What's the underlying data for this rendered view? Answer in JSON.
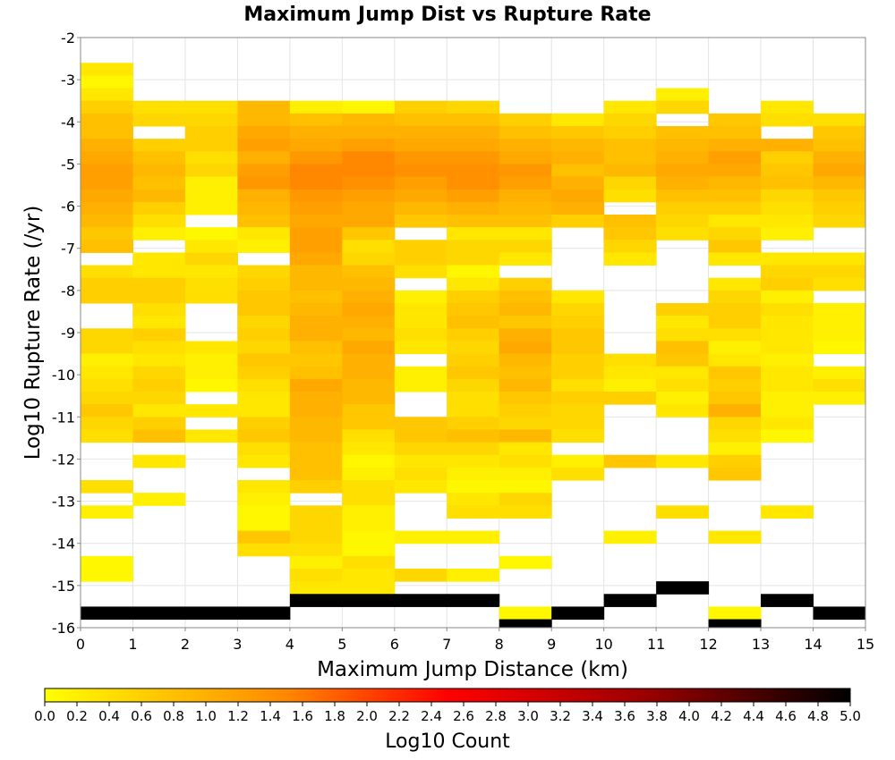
{
  "chart_data": {
    "type": "heatmap",
    "title": "Maximum Jump Dist vs Rupture Rate",
    "xlabel": "Maximum Jump Distance (km)",
    "ylabel": "Log10 Rupture Rate (/yr)",
    "xlim": [
      0,
      15
    ],
    "ylim": [
      -16,
      -2
    ],
    "x_ticks": [
      "0",
      "1",
      "2",
      "3",
      "4",
      "5",
      "6",
      "7",
      "8",
      "9",
      "10",
      "11",
      "12",
      "13",
      "14",
      "15"
    ],
    "y_ticks": [
      "-2",
      "-3",
      "-4",
      "-5",
      "-6",
      "-7",
      "-8",
      "-9",
      "-10",
      "-11",
      "-12",
      "-13",
      "-14",
      "-15",
      "-16"
    ],
    "grid": true,
    "x_bin_width": 1,
    "y_bin_height": 0.3,
    "columns": [
      {
        "x": 0,
        "y_start": -2.6,
        "counts": [
          0.3,
          0.1,
          0.3,
          0.6,
          0.8,
          0.8,
          1.0,
          1.1,
          1.2,
          1.2,
          1.1,
          1.0,
          0.9,
          0.7,
          0.8,
          null,
          0.4,
          0.6,
          0.6,
          null,
          null,
          0.5,
          0.5,
          0.2,
          0.3,
          0.4,
          0.5,
          0.7,
          0.5,
          0.4,
          null,
          null,
          null,
          0.4,
          null,
          0.2,
          null,
          null,
          null,
          0.1,
          0.1,
          null,
          null,
          5.0
        ]
      },
      {
        "x": 1,
        "y_start": -3.5,
        "counts": [
          0.4,
          0.5,
          null,
          0.6,
          0.8,
          0.9,
          0.8,
          0.9,
          0.6,
          0.4,
          0.2,
          null,
          0.3,
          0.3,
          0.6,
          0.6,
          0.4,
          0.3,
          0.6,
          0.4,
          0.3,
          0.5,
          0.6,
          0.5,
          0.3,
          0.6,
          0.8,
          null,
          0.3,
          null,
          null,
          0.2,
          null,
          null,
          null,
          null,
          null,
          null,
          null,
          null,
          5.0
        ]
      },
      {
        "x": 2,
        "y_start": -3.5,
        "counts": [
          0.4,
          0.5,
          0.6,
          0.6,
          0.4,
          0.5,
          0.2,
          0.2,
          0.2,
          null,
          0.1,
          0.3,
          0.5,
          0.3,
          0.4,
          0.4,
          null,
          null,
          null,
          0.3,
          0.2,
          0.2,
          0.1,
          null,
          0.3,
          null,
          0.3,
          null,
          null,
          null,
          null,
          null,
          null,
          null,
          null,
          null,
          null,
          null,
          null,
          null,
          5.0
        ]
      },
      {
        "x": 3,
        "y_start": -3.5,
        "counts": [
          0.9,
          0.9,
          1.1,
          1.2,
          1.0,
          1.2,
          1.3,
          1.0,
          0.9,
          0.8,
          0.3,
          0.2,
          null,
          0.5,
          0.6,
          0.7,
          0.7,
          0.5,
          0.6,
          0.5,
          0.7,
          0.6,
          0.4,
          0.3,
          0.3,
          0.6,
          0.7,
          0.4,
          0.3,
          null,
          0.3,
          0.2,
          0.1,
          0.1,
          0.7,
          0.4,
          null,
          null,
          null,
          null,
          5.1
        ]
      },
      {
        "x": 4,
        "y_start": -3.5,
        "counts": [
          0.2,
          0.8,
          1.0,
          1.1,
          1.3,
          1.5,
          1.5,
          1.3,
          1.2,
          1.1,
          1.2,
          1.2,
          1.1,
          0.9,
          0.9,
          0.8,
          0.9,
          1.0,
          1.0,
          0.8,
          0.7,
          0.8,
          1.1,
          1.0,
          1.0,
          0.9,
          0.9,
          0.8,
          0.8,
          0.8,
          0.6,
          null,
          0.5,
          0.5,
          0.5,
          0.4,
          0.2,
          0.4,
          0.3,
          5.2
        ]
      },
      {
        "x": 5,
        "y_start": -3.5,
        "counts": [
          0.1,
          0.9,
          1.0,
          1.2,
          1.5,
          1.5,
          1.4,
          1.2,
          1.1,
          1.1,
          0.7,
          0.4,
          0.5,
          0.8,
          0.9,
          1.0,
          1.1,
          1.0,
          0.9,
          1.1,
          1.0,
          1.0,
          0.9,
          0.9,
          0.7,
          0.7,
          0.4,
          0.3,
          0.1,
          0.2,
          0.4,
          0.4,
          0.2,
          0.2,
          0.1,
          0.1,
          0.4,
          0.3,
          0.3,
          5.4
        ]
      },
      {
        "x": 6,
        "y_start": -3.5,
        "counts": [
          0.6,
          0.8,
          1.0,
          1.1,
          1.3,
          1.4,
          1.2,
          1.1,
          0.9,
          0.7,
          null,
          0.6,
          0.6,
          0.4,
          null,
          0.2,
          0.3,
          0.3,
          0.4,
          0.3,
          null,
          0.2,
          0.2,
          null,
          null,
          0.7,
          0.7,
          0.5,
          0.3,
          0.4,
          0.3,
          null,
          null,
          null,
          0.2,
          null,
          null,
          0.5,
          null,
          5.1
        ]
      },
      {
        "x": 7,
        "y_start": -3.5,
        "counts": [
          0.5,
          0.8,
          1.0,
          1.1,
          1.3,
          1.4,
          1.4,
          1.2,
          1.0,
          0.8,
          0.3,
          0.5,
          0.5,
          0.1,
          0.3,
          0.6,
          0.7,
          0.8,
          0.6,
          0.5,
          0.6,
          0.7,
          0.5,
          0.4,
          0.4,
          0.6,
          0.8,
          0.5,
          0.3,
          0.2,
          0.1,
          0.3,
          0.4,
          null,
          0.2,
          null,
          null,
          0.2,
          null,
          5.1
        ]
      },
      {
        "x": 8,
        "y_start": -3.8,
        "counts": [
          0.6,
          0.8,
          1.0,
          1.1,
          1.3,
          1.2,
          1.0,
          0.9,
          0.8,
          0.3,
          0.5,
          0.3,
          null,
          0.6,
          0.8,
          0.9,
          0.7,
          1.0,
          1.1,
          0.9,
          0.8,
          0.9,
          0.7,
          0.6,
          0.5,
          0.9,
          0.3,
          0.4,
          0.2,
          0.1,
          0.5,
          0.4,
          null,
          null,
          null,
          0.1,
          null,
          null,
          null,
          0.1,
          5.0
        ]
      },
      {
        "x": 9,
        "y_start": -3.8,
        "counts": [
          0.3,
          0.7,
          0.9,
          1.0,
          0.8,
          1.0,
          1.1,
          1.0,
          0.6,
          null,
          null,
          null,
          null,
          null,
          0.3,
          0.5,
          0.6,
          0.7,
          0.7,
          0.6,
          0.6,
          0.4,
          0.6,
          0.5,
          0.5,
          0.4,
          null,
          0.2,
          0.4,
          null,
          null,
          null,
          null,
          null,
          null,
          null,
          null,
          null,
          null,
          5.0
        ]
      },
      {
        "x": 10,
        "y_start": -3.5,
        "counts": [
          0.3,
          0.5,
          0.6,
          0.8,
          0.8,
          0.9,
          0.5,
          0.4,
          null,
          0.8,
          0.7,
          0.5,
          0.3,
          null,
          null,
          null,
          null,
          null,
          null,
          null,
          0.4,
          0.3,
          0.2,
          0.6,
          null,
          null,
          null,
          null,
          0.7,
          null,
          null,
          null,
          null,
          null,
          0.2,
          null,
          null,
          null,
          null,
          5.0
        ]
      },
      {
        "x": 11,
        "y_start": -3.2,
        "counts": [
          0.2,
          0.5,
          null,
          0.8,
          0.9,
          1.0,
          1.1,
          1.0,
          0.8,
          0.6,
          0.5,
          0.4,
          null,
          null,
          null,
          null,
          null,
          0.6,
          0.3,
          0.4,
          0.8,
          0.7,
          0.3,
          0.4,
          0.2,
          0.3,
          null,
          null,
          null,
          0.3,
          null,
          null,
          null,
          0.4,
          null,
          null,
          null,
          null,
          null,
          5.0
        ]
      },
      {
        "x": 12,
        "y_start": -3.8,
        "counts": [
          0.7,
          0.8,
          1.0,
          1.2,
          1.1,
          0.9,
          0.8,
          0.6,
          0.3,
          0.5,
          0.7,
          0.3,
          null,
          0.3,
          0.5,
          0.6,
          0.6,
          0.4,
          0.2,
          0.3,
          0.7,
          0.6,
          0.7,
          1.0,
          0.5,
          0.4,
          0.2,
          0.6,
          0.7,
          null,
          null,
          null,
          null,
          0.3,
          null,
          null,
          null,
          null,
          null,
          0.1,
          5.0
        ]
      },
      {
        "x": 13,
        "y_start": -3.5,
        "counts": [
          0.3,
          0.4,
          null,
          1.0,
          0.6,
          0.7,
          0.8,
          0.5,
          0.4,
          0.3,
          0.2,
          null,
          0.3,
          0.5,
          0.6,
          0.2,
          0.4,
          0.3,
          0.3,
          0.3,
          0.2,
          0.3,
          0.3,
          0.2,
          0.2,
          0.3,
          0.1,
          null,
          null,
          null,
          null,
          null,
          0.3,
          null,
          null,
          null,
          null,
          null,
          null,
          5.0
        ]
      },
      {
        "x": 14,
        "y_start": -3.8,
        "counts": [
          0.4,
          0.7,
          0.8,
          1.0,
          1.1,
          0.9,
          0.7,
          0.6,
          0.5,
          null,
          null,
          0.3,
          0.5,
          0.4,
          null,
          0.2,
          0.2,
          0.2,
          0.1,
          null,
          0.2,
          0.4,
          0.2,
          null,
          null,
          null,
          null,
          null,
          null,
          null,
          null,
          null,
          null,
          null,
          null,
          null,
          null,
          null,
          null,
          5.0
        ]
      }
    ],
    "colorbar": {
      "label": "Log10 Count",
      "min": 0.0,
      "max": 5.0,
      "ticks": [
        "0.0",
        "0.2",
        "0.4",
        "0.6",
        "0.8",
        "1.0",
        "1.2",
        "1.4",
        "1.6",
        "1.8",
        "2.0",
        "2.2",
        "2.4",
        "2.6",
        "2.8",
        "3.0",
        "3.2",
        "3.4",
        "3.6",
        "3.8",
        "4.0",
        "4.2",
        "4.4",
        "4.6",
        "4.8",
        "5.0"
      ],
      "colors": [
        "#ffff00",
        "#ff8800",
        "#ff0000",
        "#990000",
        "#000000"
      ]
    }
  }
}
